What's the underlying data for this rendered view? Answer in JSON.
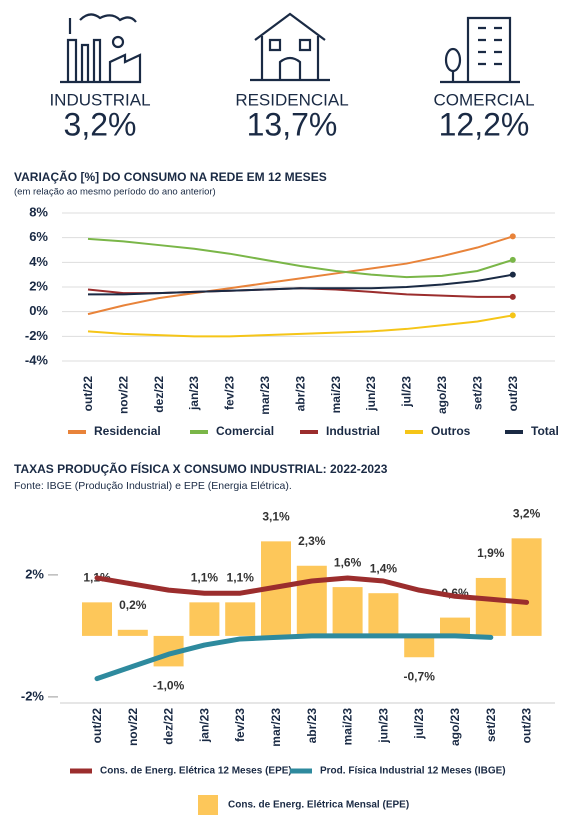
{
  "kpis": [
    {
      "label": "INDUSTRIAL",
      "value": "3,2%"
    },
    {
      "label": "RESIDENCIAL",
      "value": "13,7%"
    },
    {
      "label": "COMERCIAL",
      "value": "12,2%"
    }
  ],
  "chart_data": [
    {
      "type": "line",
      "title": "VARIAÇÃO [%] DO CONSUMO NA REDE EM 12 MESES",
      "subtitle": "(em relação ao mesmo período do ano anterior)",
      "categories": [
        "out/22",
        "nov/22",
        "dez/22",
        "jan/23",
        "fev/23",
        "mar/23",
        "abr/23",
        "mai/23",
        "jun/23",
        "jul/23",
        "ago/23",
        "set/23",
        "out/23"
      ],
      "series": [
        {
          "name": "Residencial",
          "color": "#e8833a",
          "values": [
            -0.2,
            0.5,
            1.1,
            1.5,
            1.9,
            2.3,
            2.7,
            3.1,
            3.5,
            3.9,
            4.5,
            5.2,
            6.1
          ]
        },
        {
          "name": "Comercial",
          "color": "#7ab648",
          "values": [
            5.9,
            5.7,
            5.4,
            5.1,
            4.7,
            4.2,
            3.7,
            3.3,
            3.0,
            2.8,
            2.9,
            3.3,
            4.2
          ]
        },
        {
          "name": "Industrial",
          "color": "#9b2d2d",
          "values": [
            1.8,
            1.5,
            1.5,
            1.6,
            1.7,
            1.8,
            1.9,
            1.8,
            1.6,
            1.4,
            1.3,
            1.2,
            1.2
          ]
        },
        {
          "name": "Outros",
          "color": "#f5c518",
          "values": [
            -1.6,
            -1.8,
            -1.9,
            -2.0,
            -2.0,
            -1.9,
            -1.8,
            -1.7,
            -1.6,
            -1.4,
            -1.1,
            -0.8,
            -0.3
          ]
        },
        {
          "name": "Total",
          "color": "#1a2a44",
          "values": [
            1.4,
            1.4,
            1.5,
            1.6,
            1.7,
            1.8,
            1.9,
            1.9,
            1.9,
            2.0,
            2.2,
            2.5,
            3.0
          ]
        }
      ],
      "ylim": [
        -4,
        8
      ],
      "yticks": [
        {
          "value": -4,
          "label": "-4%"
        },
        {
          "value": -2,
          "label": "-2%"
        },
        {
          "value": 0,
          "label": "0%"
        },
        {
          "value": 2,
          "label": "2%"
        },
        {
          "value": 4,
          "label": "4%"
        },
        {
          "value": 6,
          "label": "6%"
        },
        {
          "value": 8,
          "label": "8%"
        }
      ],
      "grid": true,
      "legend": "bottom"
    },
    {
      "type": "bar-line",
      "title": "TAXAS PRODUÇÃO FÍSICA X CONSUMO INDUSTRIAL: 2022-2023",
      "subtitle": "Fonte: IBGE (Produção Industrial) e EPE (Energia Elétrica).",
      "categories": [
        "out/22",
        "nov/22",
        "dez/22",
        "jan/23",
        "fev/23",
        "mar/23",
        "abr/23",
        "mai/23",
        "jun/23",
        "jul/23",
        "ago/23",
        "set/23",
        "out/23"
      ],
      "series": [
        {
          "name": "Cons. de Energ. Elétrica 12 Meses (EPE)",
          "type": "line",
          "color": "#9b2d2d",
          "values": [
            1.9,
            1.7,
            1.5,
            1.4,
            1.4,
            1.6,
            1.8,
            1.9,
            1.8,
            1.5,
            1.3,
            1.2,
            1.1
          ]
        },
        {
          "name": "Prod. Física Industrial 12 Meses (IBGE)",
          "type": "line",
          "color": "#2e8a9e",
          "values": [
            -1.4,
            -1.0,
            -0.6,
            -0.3,
            -0.1,
            -0.05,
            0.0,
            0.0,
            0.0,
            0.0,
            0.0,
            -0.05,
            null
          ]
        },
        {
          "name": "Cons. de Energ. Elétrica Mensal (EPE)",
          "type": "bar",
          "color": "#fdc75a",
          "values": [
            1.1,
            0.2,
            -1.0,
            1.1,
            1.1,
            3.1,
            2.3,
            1.6,
            1.4,
            -0.7,
            0.6,
            1.9,
            3.2
          ],
          "value_labels": [
            "1,1%",
            "0,2%",
            "-1,0%",
            "1,1%",
            "1,1%",
            "3,1%",
            "2,3%",
            "1,6%",
            "1,4%",
            "-0,7%",
            "0,6%",
            "1,9%",
            "3,2%"
          ]
        }
      ],
      "ylim": [
        -2.2,
        3.8
      ],
      "yticks": [
        {
          "value": -2,
          "label": "-2%"
        },
        {
          "value": 2,
          "label": "2%"
        }
      ],
      "legend": "bottom"
    }
  ]
}
